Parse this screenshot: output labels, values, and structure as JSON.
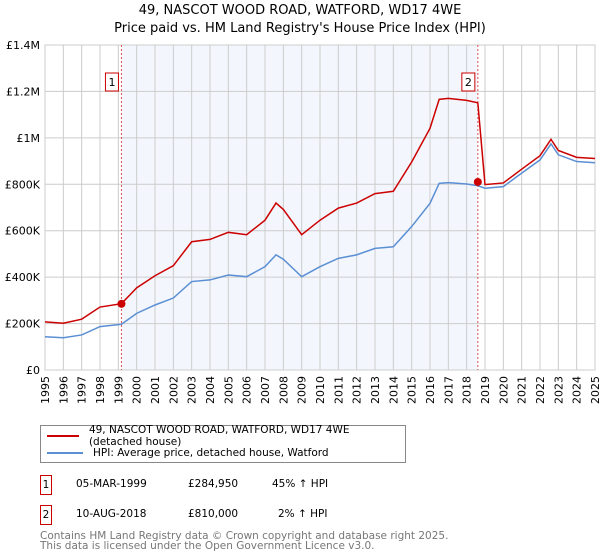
{
  "title": [
    "49, NASCOT WOOD ROAD, WATFORD, WD17 4WE",
    "Price paid vs. HM Land Registry's House Price Index (HPI)"
  ],
  "chart_data": {
    "type": "line",
    "ylim": [
      0,
      1400000
    ],
    "xlim": [
      1995,
      2025
    ],
    "yticks": [
      {
        "v": 0,
        "label": "£0"
      },
      {
        "v": 200000,
        "label": "£200K"
      },
      {
        "v": 400000,
        "label": "£400K"
      },
      {
        "v": 600000,
        "label": "£600K"
      },
      {
        "v": 800000,
        "label": "£800K"
      },
      {
        "v": 1000000,
        "label": "£1M"
      },
      {
        "v": 1200000,
        "label": "£1.2M"
      },
      {
        "v": 1400000,
        "label": "£1.4M"
      }
    ],
    "xticks": [
      "1995",
      "1996",
      "1997",
      "1998",
      "1999",
      "2000",
      "2001",
      "2002",
      "2003",
      "2004",
      "2005",
      "2006",
      "2007",
      "2008",
      "2009",
      "2010",
      "2011",
      "2012",
      "2013",
      "2014",
      "2015",
      "2016",
      "2017",
      "2018",
      "2019",
      "2020",
      "2021",
      "2022",
      "2023",
      "2024",
      "2025"
    ],
    "hpi": {
      "name": "HPI: Average price, detached house, Watford",
      "color": "#5b8fd4",
      "x": [
        1995,
        1996,
        1997,
        1998,
        1999.17,
        2000,
        2001,
        2002,
        2003,
        2004,
        2005,
        2006,
        2007,
        2007.6,
        2008,
        2009,
        2010,
        2011,
        2012,
        2013,
        2014,
        2015,
        2016,
        2016.5,
        2017,
        2018,
        2018.6,
        2019,
        2020,
        2021,
        2022,
        2022.6,
        2023,
        2024,
        2025
      ],
      "y": [
        143000,
        139000,
        151000,
        187000,
        197000,
        244000,
        280000,
        310000,
        381000,
        388000,
        409000,
        402000,
        445000,
        496000,
        477000,
        402000,
        445000,
        481000,
        496000,
        524000,
        531000,
        618000,
        718000,
        804000,
        807000,
        801000,
        794000,
        783000,
        790000,
        848000,
        905000,
        974000,
        927000,
        898000,
        893000
      ]
    },
    "property": {
      "name": "49, NASCOT WOOD ROAD, WATFORD, WD17 4WE (detached house)",
      "color": "#cc0000"
    },
    "sales": [
      {
        "n": "1",
        "x": 1999.17,
        "date": "05-MAR-1999",
        "price": "£284,950",
        "value": 284950,
        "hpi": "45% ↑ HPI",
        "ratio": 1.45
      },
      {
        "n": "2",
        "x": 2018.61,
        "date": "10-AUG-2018",
        "price": "£810,000",
        "value": 810000,
        "hpi": "2% ↑ HPI",
        "ratio": 1.02
      }
    ]
  },
  "footer": [
    "Contains HM Land Registry data © Crown copyright and database right 2025.",
    "This data is licensed under the Open Government Licence v3.0."
  ]
}
